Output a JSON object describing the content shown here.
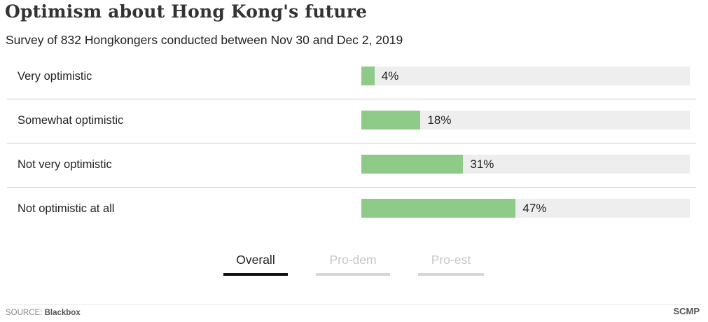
{
  "header": {
    "title": "Optimism about Hong Kong's future",
    "subtitle": "Survey of 832 Hongkongers conducted between Nov 30 and Dec 2, 2019"
  },
  "chart_data": {
    "type": "bar",
    "orientation": "horizontal",
    "title": "Optimism about Hong Kong's future",
    "subtitle": "Survey of 832 Hongkongers conducted between Nov 30 and Dec 2, 2019",
    "categories": [
      "Very optimistic",
      "Somewhat optimistic",
      "Not very optimistic",
      "Not optimistic at all"
    ],
    "values": [
      4,
      18,
      31,
      47
    ],
    "value_labels": [
      "4%",
      "18%",
      "31%",
      "47%"
    ],
    "xlim": [
      0,
      100
    ],
    "bar_color": "#8ecb88",
    "track_color": "#eeeeee",
    "grid": false,
    "legend": "none"
  },
  "tabs": [
    {
      "label": "Overall",
      "active": true
    },
    {
      "label": "Pro-dem",
      "active": false
    },
    {
      "label": "Pro-est",
      "active": false
    }
  ],
  "footer": {
    "source_prefix": "SOURCE: ",
    "source_name": "Blackbox",
    "brand": "SCMP"
  }
}
